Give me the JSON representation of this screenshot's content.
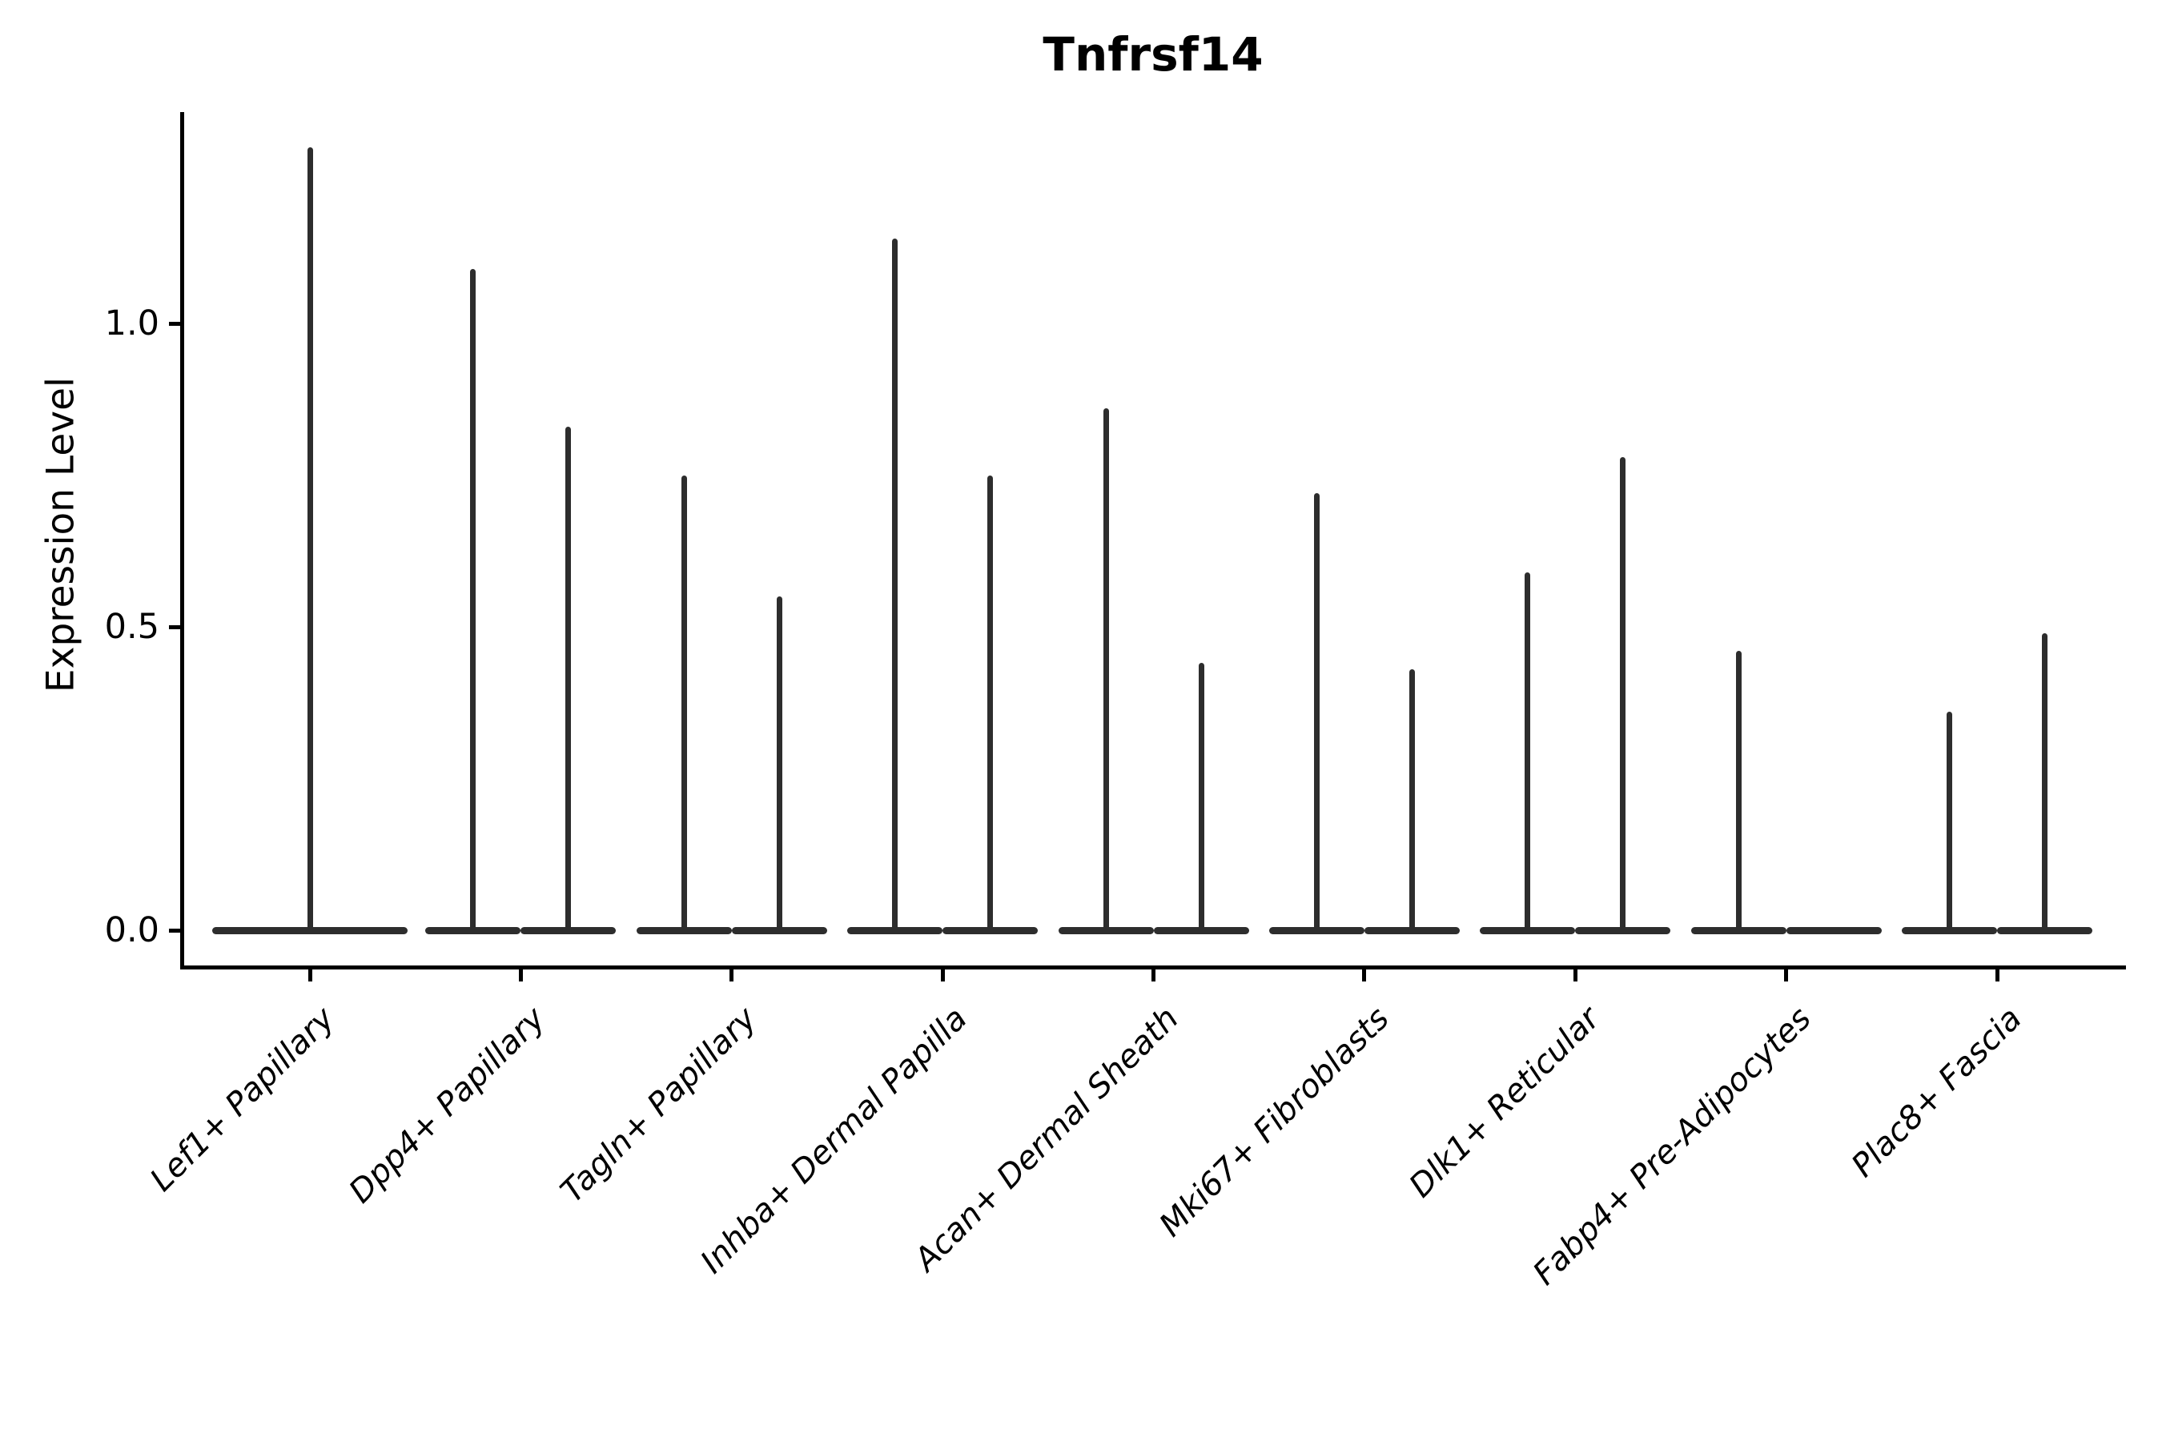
{
  "title": "Tnfrsf14",
  "ylabel": "Expression Level",
  "chart_data": {
    "type": "violin",
    "title": "Tnfrsf14",
    "xlabel": "",
    "ylabel": "Expression Level",
    "grid": false,
    "legend": "none",
    "violin_color": "#2d2d2d",
    "axis_color": "#000000",
    "ylim": [
      0,
      1.35
    ],
    "y_ticks": [
      {
        "label": "0.0",
        "value": 0.0
      },
      {
        "label": "0.5",
        "value": 0.5
      },
      {
        "label": "1.0",
        "value": 1.0
      }
    ],
    "categories": [
      "Lef1+ Papillary",
      "Dpp4+ Papillary",
      "Tagln+ Papillary",
      "Inhba+ Dermal Papilla",
      "Acan+ Dermal Sheath",
      "Mki67+ Fibroblasts",
      "Dlk1+ Reticular",
      "Fabp4+ Pre-Adipocytes",
      "Plac8+ Fascia"
    ],
    "series": [
      {
        "category": "Lef1+ Papillary",
        "violins": [
          {
            "position": "center",
            "peak": 1.29
          }
        ]
      },
      {
        "category": "Dpp4+ Papillary",
        "violins": [
          {
            "position": "left",
            "peak": 1.09
          },
          {
            "position": "right",
            "peak": 0.83
          }
        ]
      },
      {
        "category": "Tagln+ Papillary",
        "violins": [
          {
            "position": "left",
            "peak": 0.75
          },
          {
            "position": "right",
            "peak": 0.55
          }
        ]
      },
      {
        "category": "Inhba+ Dermal Papilla",
        "violins": [
          {
            "position": "left",
            "peak": 1.14
          },
          {
            "position": "right",
            "peak": 0.75
          }
        ]
      },
      {
        "category": "Acan+ Dermal Sheath",
        "violins": [
          {
            "position": "left",
            "peak": 0.86
          },
          {
            "position": "right",
            "peak": 0.44
          }
        ]
      },
      {
        "category": "Mki67+ Fibroblasts",
        "violins": [
          {
            "position": "left",
            "peak": 0.72
          },
          {
            "position": "right",
            "peak": 0.43
          }
        ]
      },
      {
        "category": "Dlk1+ Reticular",
        "violins": [
          {
            "position": "left",
            "peak": 0.59
          },
          {
            "position": "right",
            "peak": 0.78
          }
        ]
      },
      {
        "category": "Fabp4+ Pre-Adipocytes",
        "violins": [
          {
            "position": "left",
            "peak": 0.46
          },
          {
            "position": "right",
            "peak": 0.0
          }
        ]
      },
      {
        "category": "Plac8+ Fascia",
        "violins": [
          {
            "position": "left",
            "peak": 0.36
          },
          {
            "position": "right",
            "peak": 0.49
          }
        ]
      }
    ]
  }
}
